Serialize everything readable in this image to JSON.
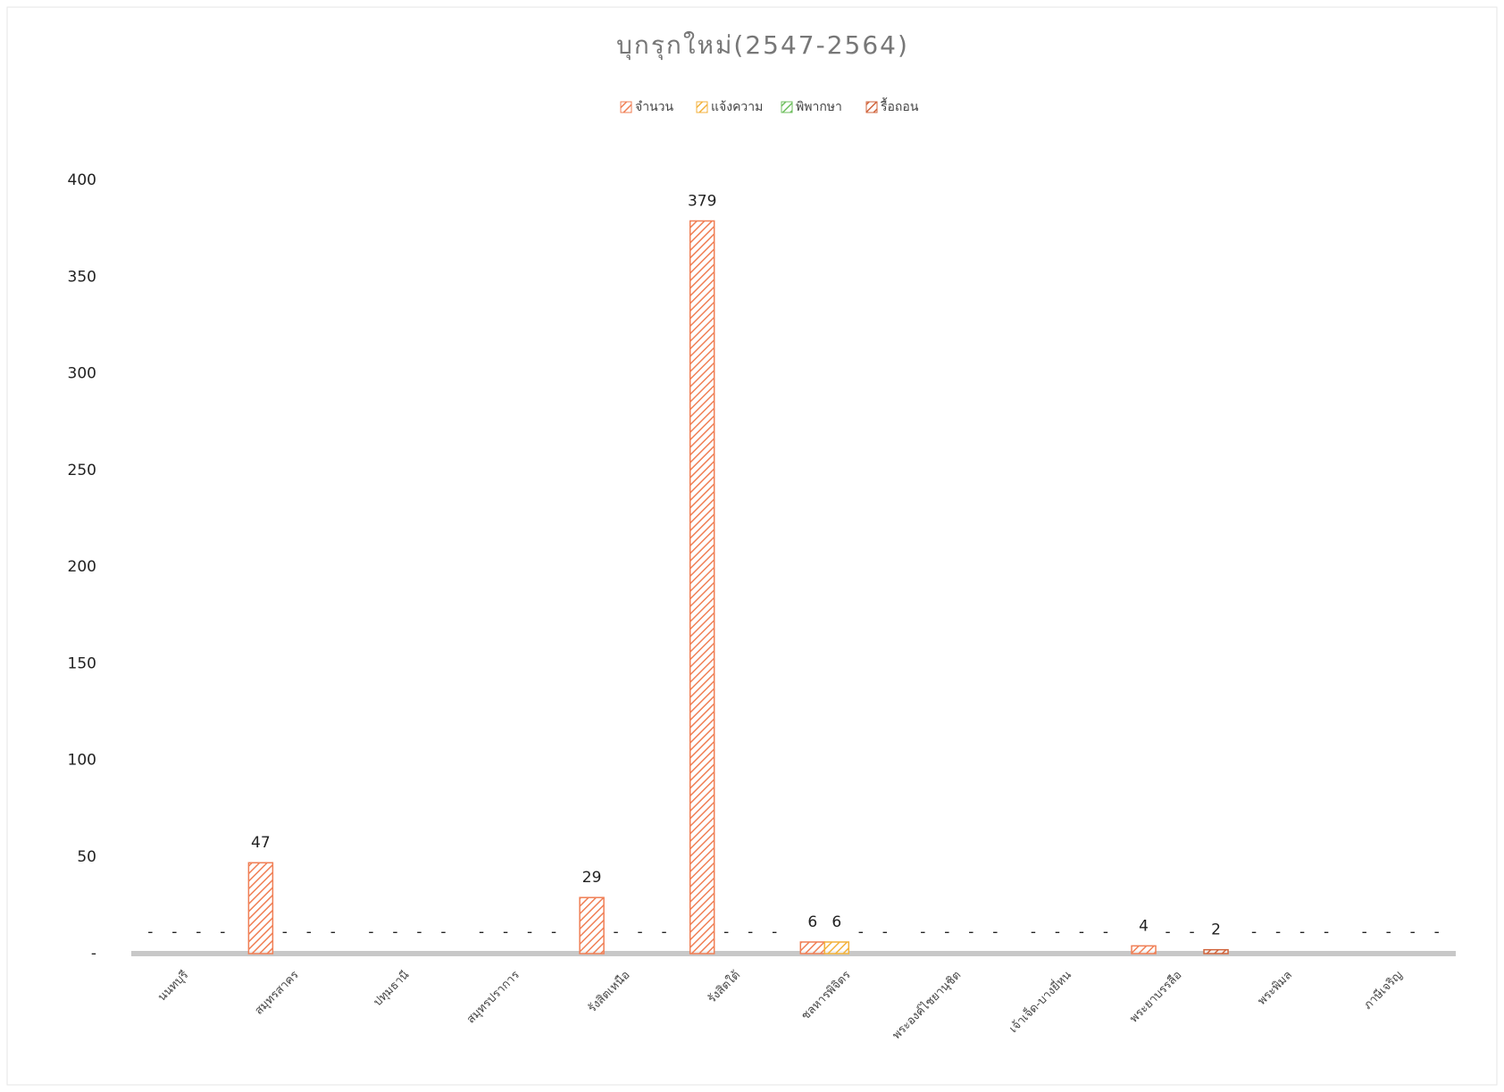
{
  "chart_data": {
    "type": "bar",
    "title": "บุกรุกใหม่(2547-2564)",
    "categories": [
      "นนทบุรี",
      "สมุทรสาคร",
      "ปทุมธานี",
      "สมุทรปราการ",
      "รังสิตเหนือ",
      "รังสิตใต้",
      "ชลหารพิจิตร",
      "พระองค์ไชยานุชิต",
      "เจ้าเจ็ด-บางยี่หน",
      "พระยาบรรลือ",
      "พระพิมล",
      "ภาษีเจริญ"
    ],
    "series": [
      {
        "name": "จำนวน",
        "color": "#f07f55",
        "values": [
          0,
          47,
          0,
          0,
          29,
          379,
          6,
          0,
          0,
          4,
          0,
          0
        ],
        "value_labels": [
          "-",
          "47",
          "-",
          "-",
          "29",
          "379",
          "6",
          "-",
          "-",
          "4",
          "-",
          "-"
        ]
      },
      {
        "name": "แจ้งความ",
        "color": "#f3b23c",
        "values": [
          0,
          0,
          0,
          0,
          0,
          0,
          6,
          0,
          0,
          0,
          0,
          0
        ],
        "value_labels": [
          "-",
          "-",
          "-",
          "-",
          "-",
          "-",
          "6",
          "-",
          "-",
          "-",
          "-",
          "-"
        ]
      },
      {
        "name": "พิพากษา",
        "color": "#6fbf5f",
        "values": [
          0,
          0,
          0,
          0,
          0,
          0,
          0,
          0,
          0,
          0,
          0,
          0
        ],
        "value_labels": [
          "-",
          "-",
          "-",
          "-",
          "-",
          "-",
          "-",
          "-",
          "-",
          "-",
          "-",
          "-"
        ]
      },
      {
        "name": "รื้อถอน",
        "color": "#d0643c",
        "values": [
          0,
          0,
          0,
          0,
          0,
          0,
          0,
          0,
          0,
          2,
          0,
          0
        ],
        "value_labels": [
          "-",
          "-",
          "-",
          "-",
          "-",
          "-",
          "-",
          "-",
          "-",
          "2",
          "-",
          "-"
        ]
      }
    ],
    "ylim": [
      0,
      400
    ],
    "yticks": [
      {
        "value": 0,
        "label": "-"
      },
      50,
      100,
      150,
      200,
      250,
      300,
      350,
      400
    ]
  }
}
